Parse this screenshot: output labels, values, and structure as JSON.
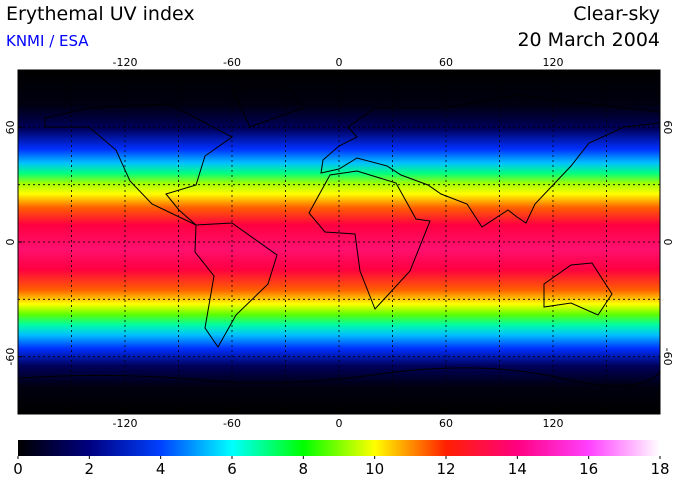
{
  "header": {
    "title": "Erythemal UV index",
    "source": "KNMI / ESA",
    "condition": "Clear-sky",
    "date": "20 March 2004"
  },
  "map": {
    "xlim": [
      -180,
      180
    ],
    "ylim": [
      -90,
      90
    ],
    "xticks": [
      -120,
      -60,
      0,
      60,
      120
    ],
    "yticks": [
      60,
      0,
      -60
    ],
    "xgrid": [
      -150,
      -120,
      -90,
      -60,
      -30,
      0,
      30,
      60,
      90,
      120,
      150
    ],
    "ygrid": [
      60,
      30,
      0,
      -30,
      -60
    ]
  },
  "colorbar": {
    "lim": [
      0,
      18
    ],
    "ticks": [
      0,
      2,
      4,
      6,
      8,
      10,
      12,
      14,
      16,
      18
    ],
    "colors": [
      "#000000",
      "#000080",
      "#0040ff",
      "#00ffff",
      "#00ff00",
      "#ffff00",
      "#ff2000",
      "#ff0080",
      "#ff40ff",
      "#ffffff"
    ]
  }
}
